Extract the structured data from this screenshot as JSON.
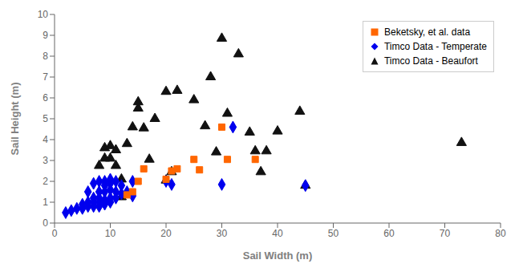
{
  "chart_data": {
    "type": "scatter",
    "xlabel": "Sail Width (m)",
    "ylabel": "Sail Height (m)",
    "xlim": [
      0,
      80
    ],
    "ylim": [
      0,
      10
    ],
    "xticks": [
      0,
      10,
      20,
      30,
      40,
      50,
      60,
      70,
      80
    ],
    "yticks": [
      0,
      1,
      2,
      3,
      4,
      5,
      6,
      7,
      8,
      9,
      10
    ],
    "grid": false,
    "legend": "upper right",
    "series": [
      {
        "name": "Beketsky, et al. data",
        "color": "#FF6600",
        "marker": "square",
        "x": [
          13,
          14,
          15,
          16,
          20,
          21,
          22,
          25,
          26,
          30,
          31,
          36
        ],
        "values": [
          1.35,
          1.5,
          2.0,
          2.6,
          2.1,
          2.5,
          2.6,
          3.05,
          2.55,
          4.6,
          3.05,
          3.05
        ]
      },
      {
        "name": "Timco Data - Temperate",
        "color": "#0000EE",
        "marker": "diamond",
        "x": [
          2,
          3,
          4,
          5,
          5,
          6,
          6,
          6,
          7,
          7,
          7,
          7,
          8,
          8,
          8,
          8,
          8,
          9,
          9,
          9,
          9,
          9,
          10,
          10,
          10,
          10,
          10,
          11,
          11,
          11,
          12,
          12,
          13,
          14,
          14,
          20,
          21,
          30,
          32,
          45
        ],
        "values": [
          0.5,
          0.6,
          0.7,
          0.7,
          0.9,
          0.8,
          1.0,
          1.5,
          0.8,
          1.0,
          1.2,
          1.9,
          0.8,
          1.0,
          1.2,
          1.5,
          2.0,
          0.9,
          1.1,
          1.5,
          1.8,
          2.0,
          1.0,
          1.2,
          1.6,
          1.9,
          2.1,
          1.2,
          1.5,
          2.0,
          1.4,
          1.8,
          1.5,
          1.3,
          2.0,
          2.0,
          1.85,
          1.85,
          4.6,
          1.8
        ]
      },
      {
        "name": "Timco Data - Beaufort",
        "color": "#111111",
        "marker": "triangle",
        "x": [
          8,
          9,
          9,
          10,
          10,
          11,
          11,
          12,
          12,
          13,
          14,
          15,
          15,
          16,
          17,
          18,
          20,
          20,
          21,
          22,
          25,
          27,
          28,
          29,
          30,
          31,
          33,
          35,
          36,
          37,
          38,
          40,
          44,
          45,
          73
        ],
        "values": [
          2.75,
          3.1,
          3.6,
          3.1,
          3.7,
          2.75,
          3.5,
          1.25,
          2.1,
          3.8,
          4.6,
          5.5,
          5.8,
          4.55,
          3.05,
          5.0,
          6.3,
          2.05,
          2.45,
          6.35,
          5.9,
          4.65,
          7.0,
          3.4,
          8.85,
          5.25,
          8.1,
          4.35,
          3.45,
          2.45,
          3.45,
          4.4,
          5.35,
          1.8,
          3.85
        ]
      }
    ]
  }
}
